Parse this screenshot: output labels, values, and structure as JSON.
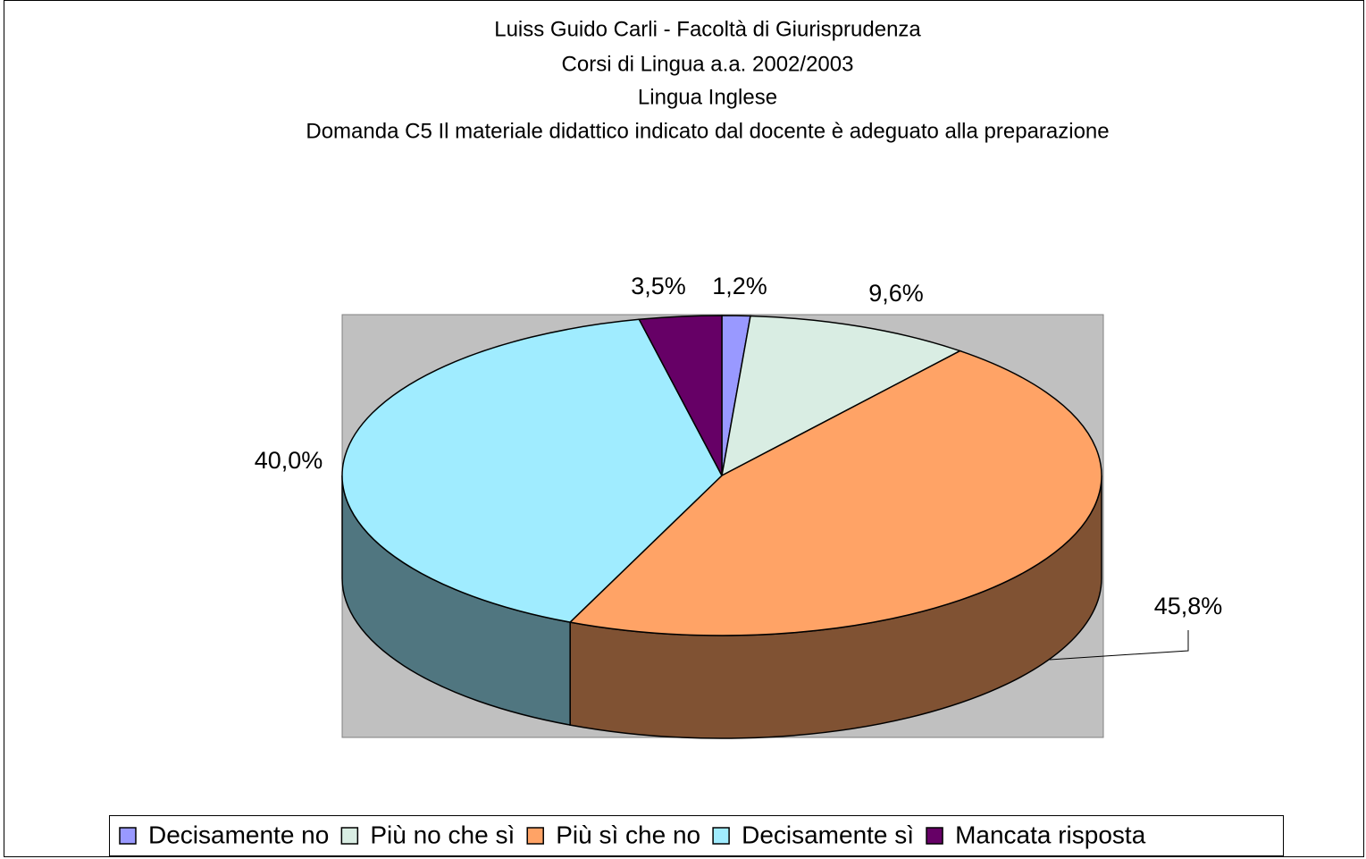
{
  "chart_data": {
    "type": "pie",
    "title_lines": [
      "Luiss Guido Carli - Facoltà di Giurisprudenza",
      "Corsi di Lingua a.a. 2002/2003",
      "Lingua Inglese",
      "Domanda C5 Il materiale didattico indicato dal docente è adeguato alla preparazione"
    ],
    "categories": [
      "Decisamente no",
      "Più no che sì",
      "Più sì che no",
      "Decisamente sì",
      "Mancata risposta"
    ],
    "values": [
      1.2,
      9.6,
      45.8,
      40.0,
      3.5
    ],
    "value_labels": [
      "1,2%",
      "9,6%",
      "45,8%",
      "40,0%",
      "3,5%"
    ],
    "colors": [
      "#9999ff",
      "#d9ede3",
      "#ffa366",
      "#a0ecff",
      "#660066"
    ],
    "legend": "bottom"
  }
}
